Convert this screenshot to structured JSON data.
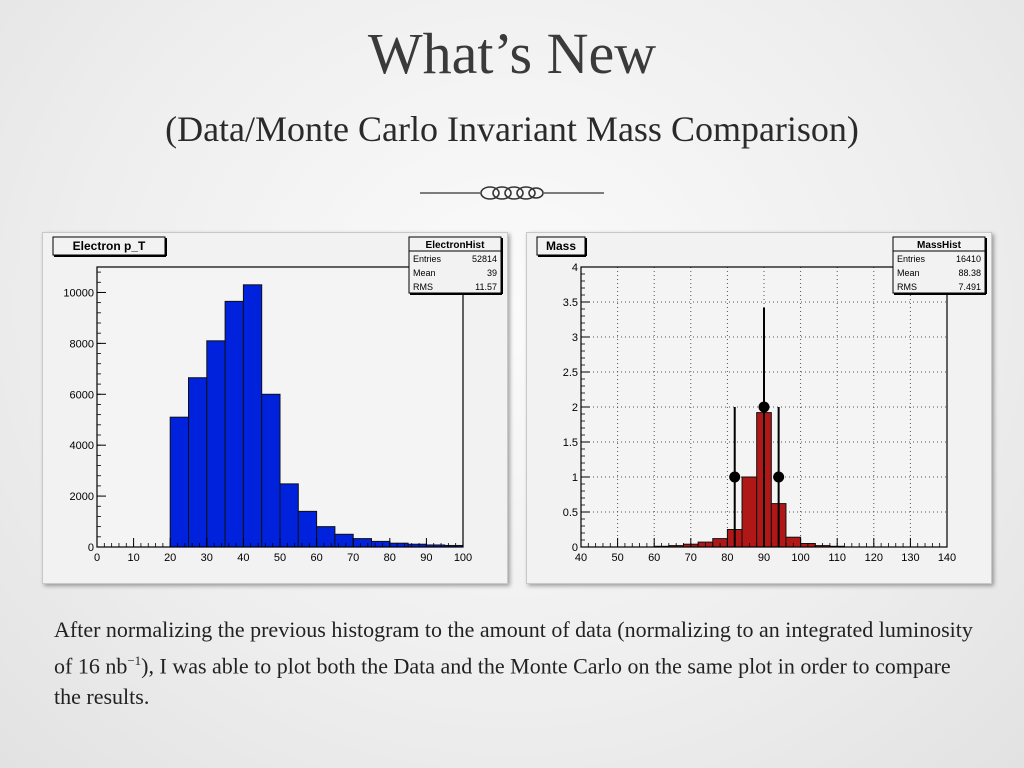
{
  "slide": {
    "title": "What’s New",
    "subtitle": "(Data/Monte Carlo Invariant Mass Comparison)",
    "body_parts": [
      "After normalizing the previous histogram to the amount of data (normalizing to an integrated luminosity of 16 nb",
      "−1",
      "), I was able to plot both the Data and the Monte Carlo on the same plot in order to compare the results."
    ]
  },
  "chart_data": [
    {
      "type": "bar",
      "title": "Electron p_T",
      "stats": {
        "name": "ElectronHist",
        "rows": [
          [
            "Entries",
            "52814"
          ],
          [
            "Mean",
            "39"
          ],
          [
            "RMS",
            "11.57"
          ]
        ]
      },
      "xlim": [
        0,
        100
      ],
      "ylim": [
        0,
        11000
      ],
      "x_ticks": [
        0,
        10,
        20,
        30,
        40,
        50,
        60,
        70,
        80,
        90,
        100
      ],
      "y_ticks": [
        0,
        2000,
        4000,
        6000,
        8000,
        10000
      ],
      "bin_width": 5,
      "bins": [
        {
          "x": 20,
          "y": 5100
        },
        {
          "x": 25,
          "y": 6650
        },
        {
          "x": 30,
          "y": 8100
        },
        {
          "x": 35,
          "y": 9650
        },
        {
          "x": 40,
          "y": 10300
        },
        {
          "x": 45,
          "y": 6000
        },
        {
          "x": 50,
          "y": 2480
        },
        {
          "x": 55,
          "y": 1400
        },
        {
          "x": 60,
          "y": 800
        },
        {
          "x": 65,
          "y": 500
        },
        {
          "x": 70,
          "y": 330
        },
        {
          "x": 75,
          "y": 220
        },
        {
          "x": 80,
          "y": 150
        },
        {
          "x": 85,
          "y": 110
        },
        {
          "x": 90,
          "y": 80
        },
        {
          "x": 95,
          "y": 60
        }
      ],
      "color": "#0022dd",
      "grid": false
    },
    {
      "type": "bar",
      "title": "Mass",
      "stats": {
        "name": "MassHist",
        "rows": [
          [
            "Entries",
            "16410"
          ],
          [
            "Mean",
            "88.38"
          ],
          [
            "RMS",
            "7.491"
          ]
        ]
      },
      "xlim": [
        40,
        140
      ],
      "ylim": [
        0,
        4
      ],
      "x_ticks": [
        40,
        50,
        60,
        70,
        80,
        90,
        100,
        110,
        120,
        130,
        140
      ],
      "y_ticks": [
        0,
        0.5,
        1,
        1.5,
        2,
        2.5,
        3,
        3.5,
        4
      ],
      "y_tick_labels": [
        "0",
        "0.5",
        "1",
        "1.5",
        "2",
        "2.5",
        "3",
        "3.5",
        "4"
      ],
      "bin_width": 4,
      "bins": [
        {
          "x": 60,
          "y": 0.01
        },
        {
          "x": 64,
          "y": 0.02
        },
        {
          "x": 68,
          "y": 0.04
        },
        {
          "x": 72,
          "y": 0.07
        },
        {
          "x": 76,
          "y": 0.12
        },
        {
          "x": 80,
          "y": 0.25
        },
        {
          "x": 84,
          "y": 1.0
        },
        {
          "x": 88,
          "y": 1.92
        },
        {
          "x": 92,
          "y": 0.62
        },
        {
          "x": 96,
          "y": 0.14
        },
        {
          "x": 100,
          "y": 0.05
        },
        {
          "x": 104,
          "y": 0.02
        },
        {
          "x": 108,
          "y": 0.01
        }
      ],
      "color": "#b01818",
      "data_points": [
        {
          "x": 82,
          "y": 1,
          "err_low": 1,
          "err_high": 1
        },
        {
          "x": 90,
          "y": 2,
          "err_low": 2,
          "err_high": 1.42
        },
        {
          "x": 94,
          "y": 1,
          "err_low": 1,
          "err_high": 1
        }
      ],
      "grid": true
    }
  ]
}
